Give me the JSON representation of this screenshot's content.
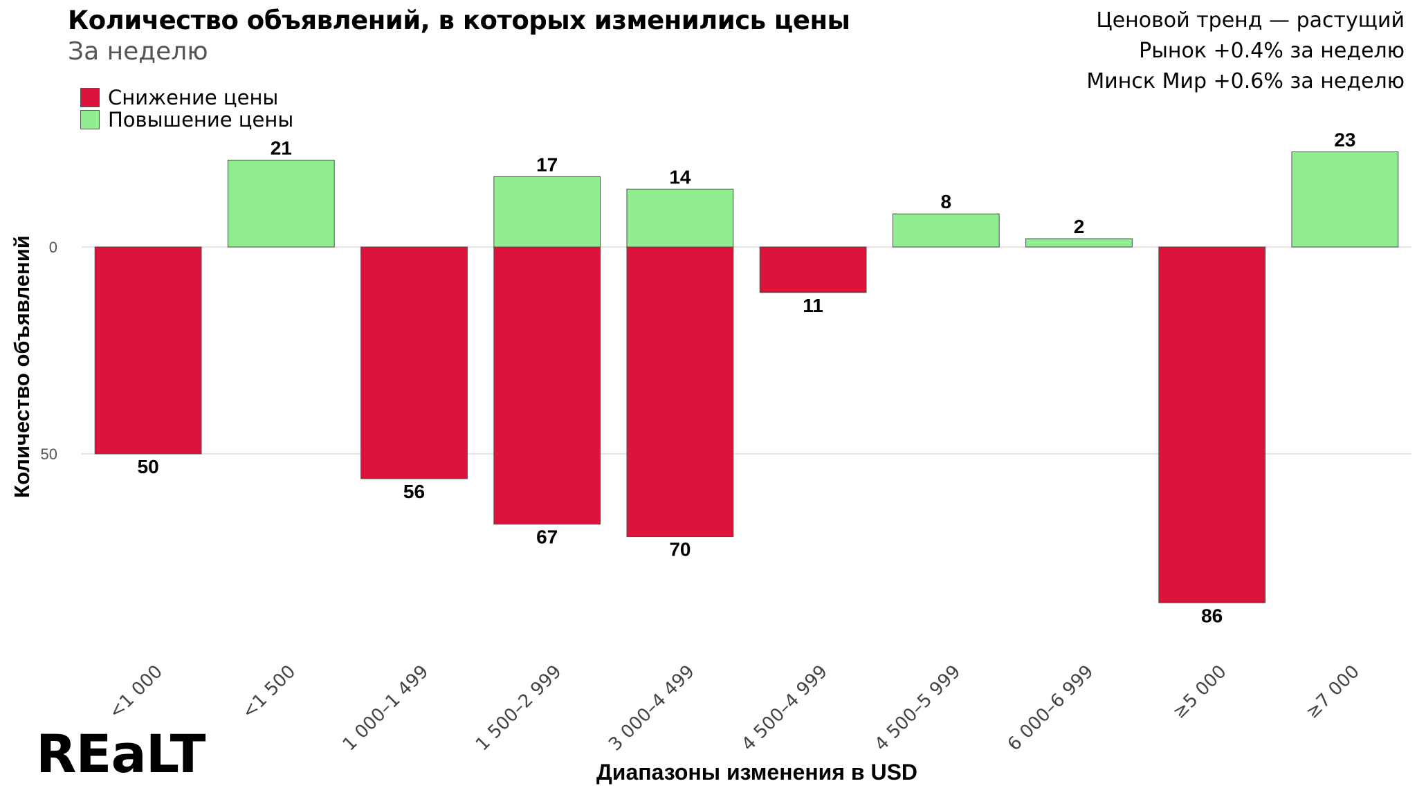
{
  "title": "Количество объявлений, в которых изменились цены",
  "subtitle": "За неделю",
  "annotations": [
    "Ценовой тренд — растущий",
    "Рынок +0.4% за неделю",
    "Минск Мир +0.6% за неделю"
  ],
  "logo_text": "REaLT",
  "colors": {
    "decrease": "#dc143c",
    "increase": "#90ee90",
    "grid": "#e5e5e5"
  },
  "chart_data": {
    "type": "bar",
    "categories": [
      "<1 000",
      "<1 500",
      "1 000–1 499",
      "1 500–2 999",
      "3 000–4 499",
      "4 500–4 999",
      "4 500–5 999",
      "6 000–6 999",
      "≥5 000",
      "≥7 000"
    ],
    "series": [
      {
        "name": "Снижение цены",
        "values": [
          50,
          null,
          56,
          67,
          70,
          11,
          null,
          null,
          86,
          null
        ]
      },
      {
        "name": "Повышение цены",
        "values": [
          null,
          21,
          null,
          17,
          14,
          null,
          8,
          2,
          null,
          23
        ]
      }
    ],
    "title": "Количество объявлений, в которых изменились цены",
    "subtitle": "За неделю",
    "xlabel": "Диапазоны изменения в USD",
    "ylabel": "Количество объявлений",
    "yticks": [
      0,
      50
    ],
    "ylim": [
      -23,
      95
    ],
    "decrease_plotted_downward": true,
    "grid": "horizontal",
    "legend_position": "top-left"
  }
}
